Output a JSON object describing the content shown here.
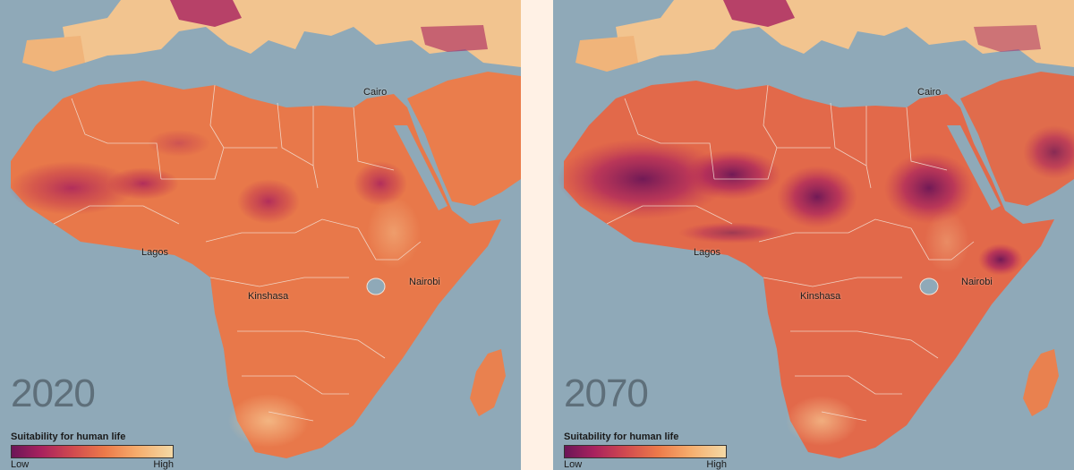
{
  "colors": {
    "sea": "#8fa9b8",
    "background": "#fff1e5",
    "low": "#6b1657",
    "mid_low": "#c2374f",
    "mid": "#e8734a",
    "high": "#f4d9a5",
    "borders": "#f3e3d8"
  },
  "panels": [
    {
      "year": "2020",
      "cities": {
        "cairo": "Cairo",
        "lagos": "Lagos",
        "kinshasa": "Kinshasa",
        "nairobi": "Nairobi"
      },
      "legend": {
        "title": "Suitability for human life",
        "low": "Low",
        "high": "High"
      }
    },
    {
      "year": "2070",
      "cities": {
        "cairo": "Cairo",
        "lagos": "Lagos",
        "kinshasa": "Kinshasa",
        "nairobi": "Nairobi"
      },
      "legend": {
        "title": "Suitability for human life",
        "low": "Low",
        "high": "High"
      }
    }
  ]
}
